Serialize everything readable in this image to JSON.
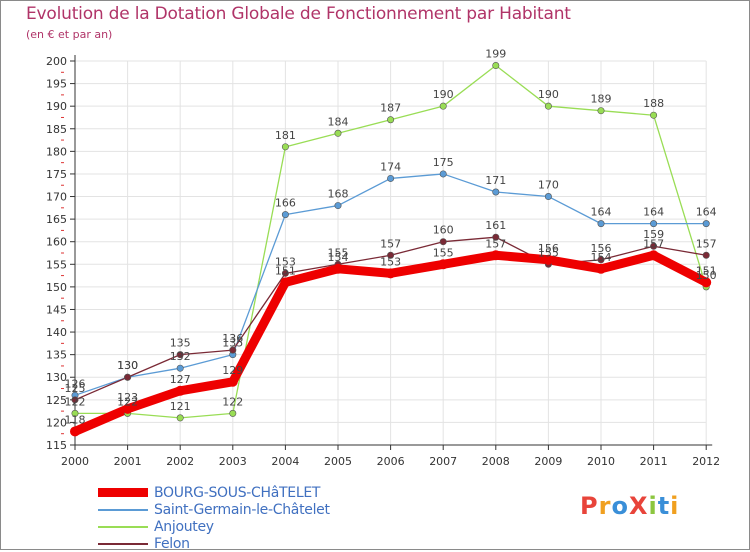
{
  "title": "Evolution de la Dotation Globale de Fonctionnement par Habitant",
  "subtitle": "(en € et par an)",
  "logo": {
    "text": "ProXiti",
    "colors": [
      "#e8443a",
      "#f0a020",
      "#3a8fd8",
      "#e8443a",
      "#8cc63f",
      "#3a8fd8",
      "#f0a020"
    ]
  },
  "chart_data": {
    "type": "line",
    "title": "Evolution de la Dotation Globale de Fonctionnement par Habitant",
    "subtitle": "(en € et par an)",
    "xlabel": "",
    "ylabel": "",
    "categories": [
      "2000",
      "2001",
      "2002",
      "2003",
      "2004",
      "2005",
      "2006",
      "2007",
      "2008",
      "2009",
      "2010",
      "2011",
      "2012"
    ],
    "ylim": [
      115,
      200
    ],
    "yticks": [
      115,
      120,
      125,
      130,
      135,
      140,
      145,
      150,
      155,
      160,
      165,
      170,
      175,
      180,
      185,
      190,
      195,
      200
    ],
    "grid": true,
    "legend_position": "bottom-left",
    "series": [
      {
        "name": "Anjoutey",
        "color": "#99dd55",
        "values": [
          122,
          122,
          121,
          122,
          181,
          184,
          187,
          190,
          199,
          190,
          189,
          188,
          150
        ]
      },
      {
        "name": "Saint-Germain-le-Châtelet",
        "color": "#5b9bd5",
        "values": [
          126,
          130,
          132,
          135,
          166,
          168,
          174,
          175,
          171,
          170,
          164,
          164,
          164
        ]
      },
      {
        "name": "Felon",
        "color": "#7a2a36",
        "values": [
          125,
          130,
          135,
          136,
          153,
          155,
          157,
          160,
          161,
          155,
          156,
          159,
          157
        ]
      },
      {
        "name": "BOURG-SOUS-CHâTELET",
        "color": "#ee0000",
        "values": [
          118,
          123,
          127,
          129,
          151,
          154,
          153,
          155,
          157,
          156,
          154,
          157,
          151
        ]
      }
    ],
    "legend": [
      "BOURG-SOUS-CHâTELET",
      "Saint-Germain-le-Châtelet",
      "Anjoutey",
      "Felon"
    ]
  }
}
